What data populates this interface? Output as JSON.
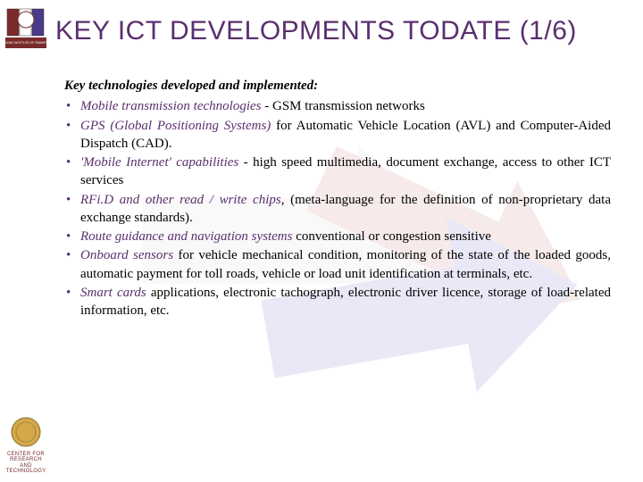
{
  "title": {
    "text": "KEY ICT DEVELOPMENTS TODATE (1/6)",
    "color": "#5a2f6e",
    "fontsize": 30
  },
  "lead": "Key technologies developed and implemented:",
  "bullet_color": "#5a2f6e",
  "highlight_color": "#5a2f6e",
  "body_color": "#000000",
  "body_fontsize": 15,
  "bullets": [
    {
      "highlight": "Mobile transmission technologies",
      "rest": " - GSM transmission networks"
    },
    {
      "highlight": "GPS (Global Positioning Systems)",
      "rest": " for Automatic Vehicle Location (AVL) and Computer-Aided Dispatch (CAD)."
    },
    {
      "highlight": "'Mobile Internet' capabilities",
      "rest": " - high speed multimedia, document exchange, access to other ICT services"
    },
    {
      "highlight": "RFi.D and other read / write chips",
      "rest": ", (meta-language for the definition of non-proprietary data exchange standards)."
    },
    {
      "highlight": "Route guidance and navigation systems",
      "rest": " conventional or congestion sensitive"
    },
    {
      "highlight": "Onboard sensors",
      "rest": "  for  vehicle mechanical condition, monitoring of the state of the loaded goods, automatic payment for toll roads, vehicle or load unit identification at terminals, etc."
    },
    {
      "highlight": "Smart cards",
      "rest": " applications, electronic tachograph, electronic driver licence, storage of load-related information, etc."
    }
  ],
  "background": {
    "arrow_colors": [
      "#d9d9d9",
      "#c77b7b",
      "#6b6ed1"
    ],
    "opacity": 0.15
  },
  "sidebar": {
    "top_logo_bar_colors": [
      "#7a2a2a",
      "#ffffff",
      "#4a3a8a"
    ],
    "top_logo_text": "HELLENIC INSTITUTE OF TRANSPORT",
    "bottom_medal_color": "#d4a94a",
    "bottom_text": "CENTER FOR RESEARCH AND TECHNOLOGY"
  }
}
